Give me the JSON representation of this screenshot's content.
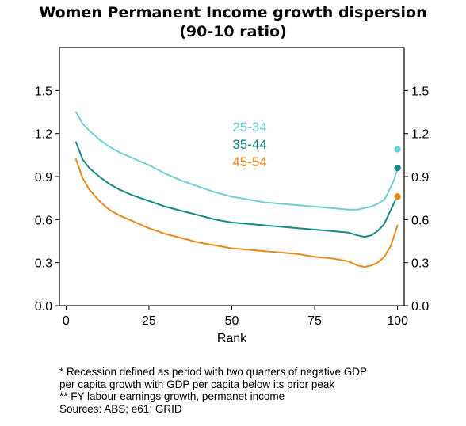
{
  "title_lines": [
    "Women Permanent Income growth dispersion",
    "(90-10 ratio)"
  ],
  "notes": [
    "* Recession defined as period with two quarters of negative GDP",
    "per capita growth with GDP per capita below its prior peak",
    "** FY labour earnings growth, permanet income",
    "Sources: ABS; e61; GRID"
  ],
  "chart_data": {
    "type": "line",
    "title": "Women Permanent Income growth dispersion (90-10 ratio)",
    "xlabel": "Rank",
    "ylabel": "",
    "xlim": [
      -2,
      102
    ],
    "ylim": [
      0,
      1.8
    ],
    "x_ticks": [
      "0",
      "25",
      "50",
      "75",
      "100"
    ],
    "y_ticks": [
      "0.0",
      "0.3",
      "0.6",
      "0.9",
      "1.2",
      "1.5"
    ],
    "y_ticks_right": [
      "0.0",
      "0.3",
      "0.6",
      "0.9",
      "1.2",
      "1.5"
    ],
    "grid": false,
    "legend_position": "inline-center",
    "series": [
      {
        "name": "25-34",
        "color": "#6fcfd6",
        "x": [
          3,
          5,
          7,
          10,
          13,
          16,
          20,
          25,
          30,
          35,
          40,
          45,
          50,
          55,
          60,
          65,
          70,
          75,
          80,
          85,
          88,
          90,
          92,
          94,
          96,
          97,
          98,
          99,
          100
        ],
        "y": [
          1.35,
          1.27,
          1.22,
          1.16,
          1.11,
          1.07,
          1.03,
          0.98,
          0.92,
          0.87,
          0.83,
          0.79,
          0.76,
          0.74,
          0.72,
          0.71,
          0.7,
          0.69,
          0.68,
          0.67,
          0.67,
          0.68,
          0.69,
          0.71,
          0.74,
          0.78,
          0.83,
          0.88,
          0.95
        ],
        "end_point": [
          100,
          1.09
        ]
      },
      {
        "name": "35-44",
        "color": "#168a86",
        "x": [
          3,
          5,
          7,
          10,
          13,
          16,
          20,
          25,
          30,
          35,
          40,
          45,
          50,
          55,
          60,
          65,
          70,
          75,
          80,
          85,
          88,
          90,
          92,
          94,
          96,
          97,
          98,
          99,
          100
        ],
        "y": [
          1.14,
          1.02,
          0.96,
          0.9,
          0.85,
          0.81,
          0.77,
          0.73,
          0.69,
          0.66,
          0.63,
          0.6,
          0.58,
          0.57,
          0.56,
          0.55,
          0.54,
          0.53,
          0.52,
          0.51,
          0.49,
          0.48,
          0.49,
          0.52,
          0.57,
          0.62,
          0.67,
          0.72,
          0.77
        ],
        "end_point": [
          100,
          0.96
        ]
      },
      {
        "name": "45-54",
        "color": "#e8891e",
        "x": [
          3,
          5,
          7,
          10,
          13,
          16,
          20,
          25,
          30,
          35,
          40,
          45,
          50,
          55,
          60,
          65,
          70,
          75,
          80,
          85,
          88,
          90,
          92,
          94,
          96,
          97,
          98,
          99,
          100
        ],
        "y": [
          1.02,
          0.89,
          0.81,
          0.73,
          0.67,
          0.63,
          0.59,
          0.54,
          0.5,
          0.47,
          0.44,
          0.42,
          0.4,
          0.39,
          0.38,
          0.37,
          0.36,
          0.34,
          0.33,
          0.31,
          0.28,
          0.27,
          0.28,
          0.3,
          0.34,
          0.38,
          0.42,
          0.49,
          0.56
        ],
        "end_point": [
          100,
          0.76
        ]
      }
    ]
  }
}
